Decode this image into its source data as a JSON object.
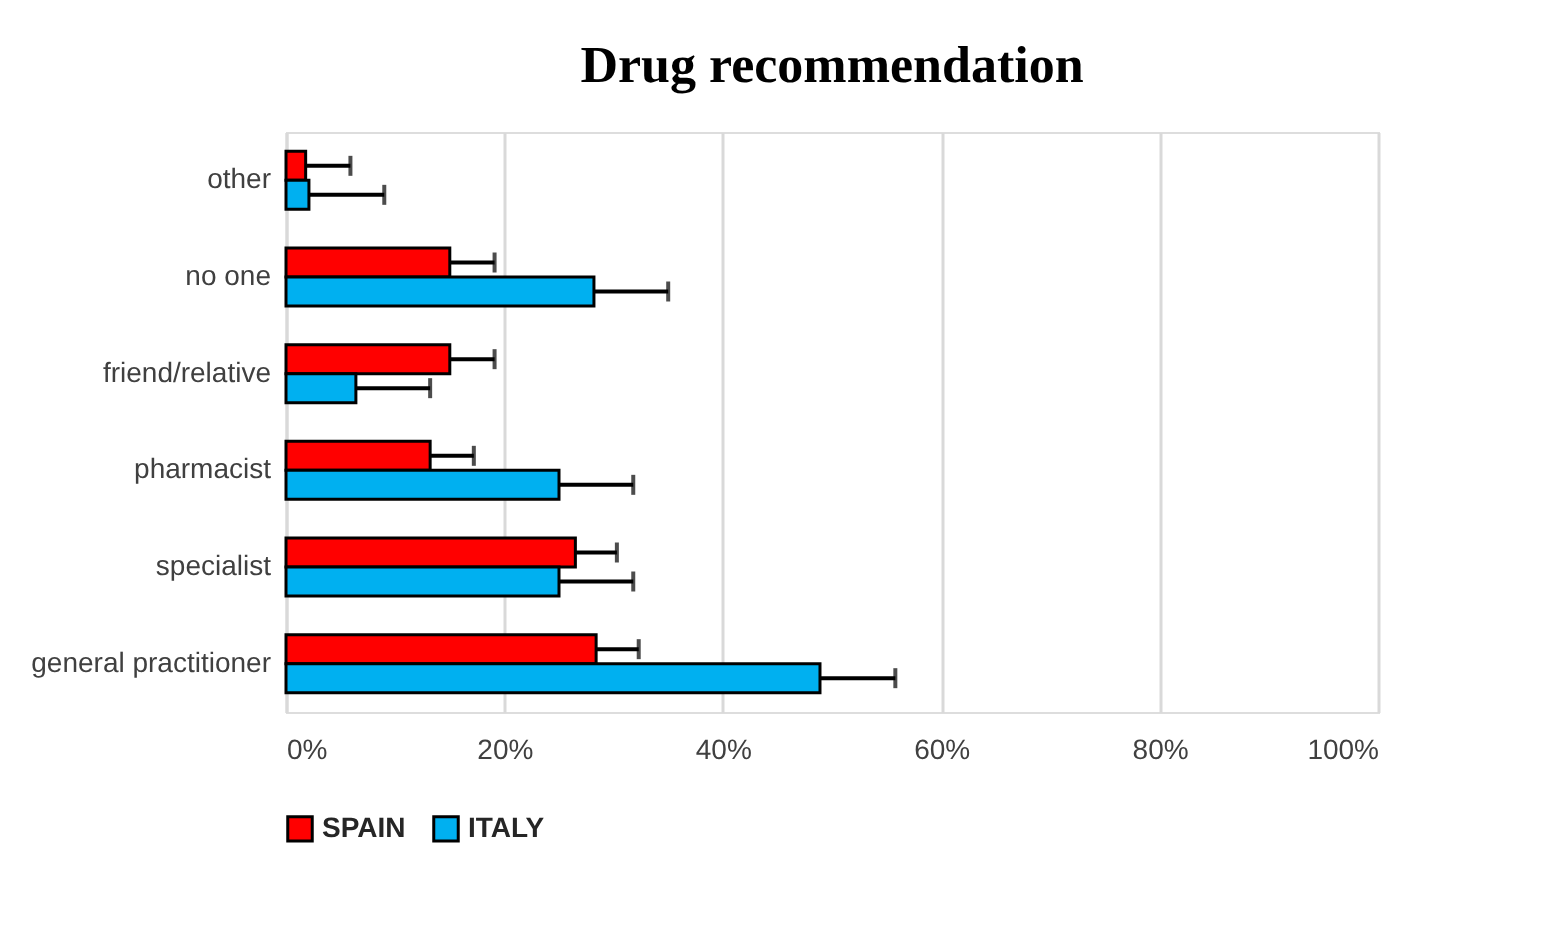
{
  "chart_data": {
    "type": "bar",
    "orientation": "horizontal",
    "title": "Drug recommendation",
    "categories": [
      "other",
      "no one",
      "friend/relative",
      "pharmacist",
      "specialist",
      "general practitioner"
    ],
    "series": [
      {
        "name": "SPAIN",
        "color": "#ff0000",
        "values": [
          1.8,
          15.0,
          15.0,
          13.2,
          26.5,
          28.4
        ],
        "errors": [
          [
            1.8,
            5.9
          ],
          [
            15.0,
            19.1
          ],
          [
            15.0,
            19.1
          ],
          [
            13.2,
            17.2
          ],
          [
            26.5,
            30.3
          ],
          [
            28.4,
            32.3
          ]
        ]
      },
      {
        "name": "ITALY",
        "color": "#00b0f0",
        "values": [
          2.1,
          28.2,
          6.4,
          25.0,
          25.0,
          48.9
        ],
        "errors": [
          [
            2.1,
            9.0
          ],
          [
            28.2,
            35.0
          ],
          [
            6.4,
            13.2
          ],
          [
            25.0,
            31.8
          ],
          [
            25.0,
            31.8
          ],
          [
            48.9,
            55.8
          ]
        ]
      }
    ],
    "xlim": [
      0,
      100
    ],
    "xticks": [
      {
        "value": 0,
        "label": "0%"
      },
      {
        "value": 20,
        "label": "20%"
      },
      {
        "value": 40,
        "label": "40%"
      },
      {
        "value": 60,
        "label": "60%"
      },
      {
        "value": 80,
        "label": "80%"
      },
      {
        "value": 100,
        "label": "100%"
      }
    ],
    "grid": "x",
    "legend": "bottom"
  }
}
